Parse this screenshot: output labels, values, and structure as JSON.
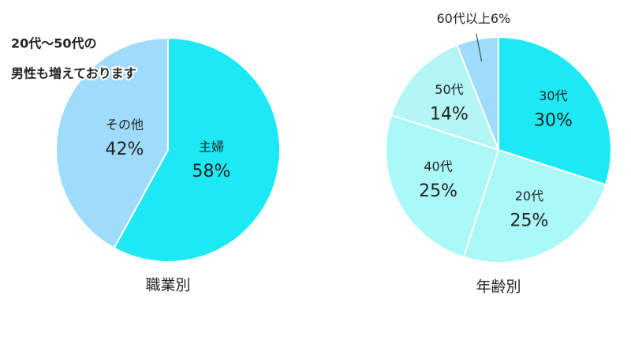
{
  "chart_data": [
    {
      "type": "pie",
      "title": "職業別",
      "annotation": [
        "20代～50代の",
        "男性も増えております"
      ],
      "categories": [
        "主婦",
        "その他"
      ],
      "values": [
        58,
        42
      ],
      "value_labels": [
        "58%",
        "42%"
      ],
      "colors": [
        "#1de9f5",
        "#9fdcfb"
      ]
    },
    {
      "type": "pie",
      "title": "年齢別",
      "categories": [
        "30代",
        "20代",
        "40代",
        "50代",
        "60代以上"
      ],
      "values": [
        30,
        25,
        25,
        14,
        6
      ],
      "value_labels": [
        "30%",
        "25%",
        "25%",
        "14%",
        "6%"
      ],
      "colors": [
        "#1de9f5",
        "#aaf8f8",
        "#aaf8f8",
        "#b4f5f6",
        "#9fdcfb"
      ]
    }
  ]
}
